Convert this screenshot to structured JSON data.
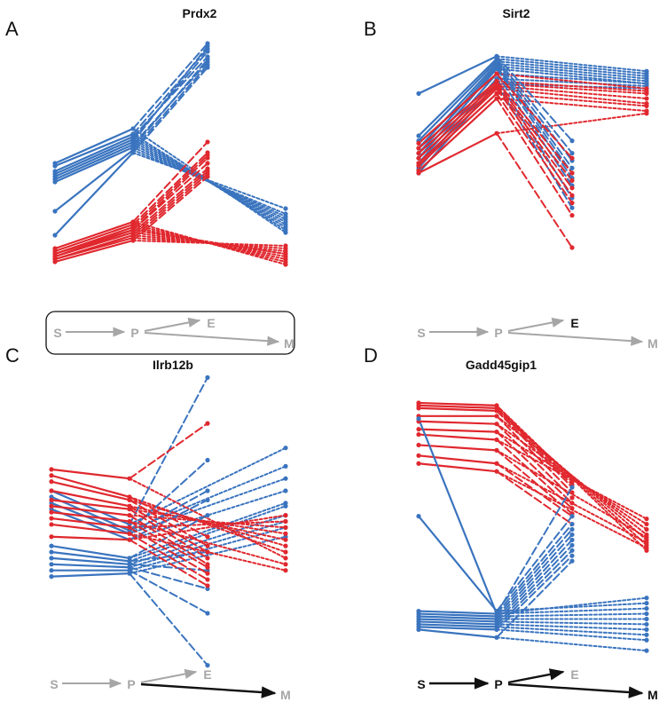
{
  "colors": {
    "blue": "#3a74bf",
    "red": "#e0282e",
    "gray": "#a6a6a6",
    "black": "#111111"
  },
  "chart_data": [
    {
      "type": "line",
      "panel": "A",
      "title": "Prdx2",
      "x": [
        "S",
        "P",
        "E",
        "M"
      ],
      "ylim": [
        0,
        100
      ],
      "diagram": {
        "labels": [
          "S",
          "P",
          "E",
          "M"
        ],
        "highlight_arrows": [],
        "bold_labels": [],
        "boxed": true
      },
      "series": [
        {
          "color": "blue",
          "values": [
            52,
            65,
            97,
            26
          ]
        },
        {
          "color": "blue",
          "values": [
            51,
            63,
            95,
            27
          ]
        },
        {
          "color": "blue",
          "values": [
            49,
            62,
            92,
            28
          ]
        },
        {
          "color": "blue",
          "values": [
            48,
            61,
            94,
            29
          ]
        },
        {
          "color": "blue",
          "values": [
            47,
            60,
            96,
            30
          ]
        },
        {
          "color": "blue",
          "values": [
            46,
            59,
            90,
            31
          ]
        },
        {
          "color": "blue",
          "values": [
            45,
            58,
            91,
            32
          ]
        },
        {
          "color": "blue",
          "values": [
            34,
            57,
            89,
            33
          ]
        },
        {
          "color": "blue",
          "values": [
            25,
            56,
            88,
            35
          ]
        },
        {
          "color": "red",
          "values": [
            20,
            30,
            60,
            14
          ]
        },
        {
          "color": "red",
          "values": [
            19,
            29,
            56,
            15
          ]
        },
        {
          "color": "red",
          "values": [
            18,
            28,
            55,
            16
          ]
        },
        {
          "color": "red",
          "values": [
            18,
            27,
            54,
            17
          ]
        },
        {
          "color": "red",
          "values": [
            17,
            27,
            52,
            18
          ]
        },
        {
          "color": "red",
          "values": [
            17,
            26,
            50,
            18
          ]
        },
        {
          "color": "red",
          "values": [
            16,
            25,
            49,
            19
          ]
        },
        {
          "color": "red",
          "values": [
            16,
            24,
            48,
            20
          ]
        },
        {
          "color": "red",
          "values": [
            15,
            23,
            47,
            21
          ]
        }
      ]
    },
    {
      "type": "line",
      "panel": "B",
      "title": "Sirt2",
      "x": [
        "S",
        "P",
        "E",
        "M"
      ],
      "ylim": [
        0,
        100
      ],
      "diagram": {
        "labels": [
          "S",
          "P",
          "E",
          "M"
        ],
        "highlight_arrows": [],
        "bold_labels": [
          "E"
        ],
        "boxed": false
      },
      "series": [
        {
          "color": "blue",
          "values": [
            82,
            97,
            63,
            91
          ]
        },
        {
          "color": "blue",
          "values": [
            65,
            96,
            58,
            90
          ]
        },
        {
          "color": "blue",
          "values": [
            63,
            95,
            55,
            89
          ]
        },
        {
          "color": "blue",
          "values": [
            60,
            94,
            52,
            88
          ]
        },
        {
          "color": "blue",
          "values": [
            58,
            93,
            50,
            87
          ]
        },
        {
          "color": "blue",
          "values": [
            56,
            92,
            48,
            86
          ]
        },
        {
          "color": "blue",
          "values": [
            54,
            90,
            45,
            86
          ]
        },
        {
          "color": "blue",
          "values": [
            52,
            88,
            40,
            85
          ]
        },
        {
          "color": "blue",
          "values": [
            50,
            86,
            36,
            84
          ]
        },
        {
          "color": "red",
          "values": [
            62,
            90,
            56,
            84
          ]
        },
        {
          "color": "red",
          "values": [
            60,
            87,
            50,
            83
          ]
        },
        {
          "color": "red",
          "values": [
            58,
            86,
            47,
            82
          ]
        },
        {
          "color": "red",
          "values": [
            56,
            85,
            44,
            80
          ]
        },
        {
          "color": "red",
          "values": [
            54,
            84,
            41,
            78
          ]
        },
        {
          "color": "red",
          "values": [
            53,
            82,
            38,
            77
          ]
        },
        {
          "color": "red",
          "values": [
            51,
            80,
            33,
            75
          ]
        },
        {
          "color": "red",
          "values": [
            50,
            66,
            20,
            74
          ]
        }
      ]
    },
    {
      "type": "line",
      "panel": "C",
      "title": "Ilrb12b",
      "x": [
        "S",
        "P",
        "E",
        "M"
      ],
      "ylim": [
        0,
        100
      ],
      "diagram": {
        "labels": [
          "S",
          "P",
          "E",
          "M"
        ],
        "highlight_arrows": [
          "P-M"
        ],
        "bold_labels": [],
        "boxed": false
      },
      "series": [
        {
          "color": "blue",
          "values": [
            60,
            49,
            97,
            74
          ]
        },
        {
          "color": "blue",
          "values": [
            58,
            47,
            70,
            68
          ]
        },
        {
          "color": "blue",
          "values": [
            56,
            46,
            60,
            64
          ]
        },
        {
          "color": "blue",
          "values": [
            54,
            44,
            57,
            60
          ]
        },
        {
          "color": "blue",
          "values": [
            42,
            38,
            52,
            56
          ]
        },
        {
          "color": "blue",
          "values": [
            40,
            37,
            40,
            55
          ]
        },
        {
          "color": "blue",
          "values": [
            38,
            36,
            34,
            52
          ]
        },
        {
          "color": "blue",
          "values": [
            36,
            35,
            28,
            50
          ]
        },
        {
          "color": "blue",
          "values": [
            34,
            34,
            20,
            48
          ]
        },
        {
          "color": "blue",
          "values": [
            32,
            33,
            3,
            45
          ]
        },
        {
          "color": "red",
          "values": [
            67,
            64,
            82,
            38
          ]
        },
        {
          "color": "red",
          "values": [
            65,
            58,
            45,
            40
          ]
        },
        {
          "color": "red",
          "values": [
            63,
            57,
            42,
            42
          ]
        },
        {
          "color": "red",
          "values": [
            60,
            55,
            40,
            44
          ]
        },
        {
          "color": "red",
          "values": [
            57,
            54,
            38,
            46
          ]
        },
        {
          "color": "red",
          "values": [
            55,
            52,
            36,
            48
          ]
        },
        {
          "color": "red",
          "values": [
            53,
            50,
            35,
            36
          ]
        },
        {
          "color": "red",
          "values": [
            51,
            48,
            33,
            50
          ]
        },
        {
          "color": "red",
          "values": [
            49,
            46,
            31,
            34
          ]
        },
        {
          "color": "red",
          "values": [
            45,
            44,
            29,
            52
          ]
        }
      ]
    },
    {
      "type": "line",
      "panel": "D",
      "title": "Gadd45gip1",
      "x": [
        "S",
        "P",
        "E",
        "M"
      ],
      "ylim": [
        0,
        100
      ],
      "diagram": {
        "labels": [
          "S",
          "P",
          "E",
          "M"
        ],
        "highlight_arrows": [
          "S-P",
          "P-E",
          "P-M"
        ],
        "bold_labels": [
          "S",
          "P",
          "M"
        ],
        "boxed": false
      },
      "series": [
        {
          "color": "red",
          "values": [
            98,
            97,
            68,
            42
          ]
        },
        {
          "color": "red",
          "values": [
            97,
            96,
            67,
            44
          ]
        },
        {
          "color": "red",
          "values": [
            96,
            95,
            66,
            46
          ]
        },
        {
          "color": "red",
          "values": [
            93,
            93,
            64,
            48
          ]
        },
        {
          "color": "red",
          "values": [
            91,
            90,
            62,
            50
          ]
        },
        {
          "color": "red",
          "values": [
            88,
            87,
            60,
            52
          ]
        },
        {
          "color": "red",
          "values": [
            86,
            84,
            58,
            54
          ]
        },
        {
          "color": "red",
          "values": [
            82,
            80,
            56,
            47
          ]
        },
        {
          "color": "red",
          "values": [
            78,
            75,
            55,
            45
          ]
        },
        {
          "color": "red",
          "values": [
            75,
            72,
            52,
            43
          ]
        },
        {
          "color": "blue",
          "values": [
            92,
            18,
            66,
            24
          ]
        },
        {
          "color": "blue",
          "values": [
            55,
            19,
            55,
            22
          ]
        },
        {
          "color": "blue",
          "values": [
            19,
            18,
            52,
            20
          ]
        },
        {
          "color": "blue",
          "values": [
            18,
            17,
            50,
            18
          ]
        },
        {
          "color": "blue",
          "values": [
            17,
            16,
            48,
            16
          ]
        },
        {
          "color": "blue",
          "values": [
            16,
            15,
            46,
            14
          ]
        },
        {
          "color": "blue",
          "values": [
            15,
            14,
            44,
            12
          ]
        },
        {
          "color": "blue",
          "values": [
            14,
            13,
            42,
            10
          ]
        },
        {
          "color": "blue",
          "values": [
            13,
            12,
            40,
            8
          ]
        },
        {
          "color": "blue",
          "values": [
            12,
            9,
            38,
            4
          ]
        }
      ]
    }
  ]
}
